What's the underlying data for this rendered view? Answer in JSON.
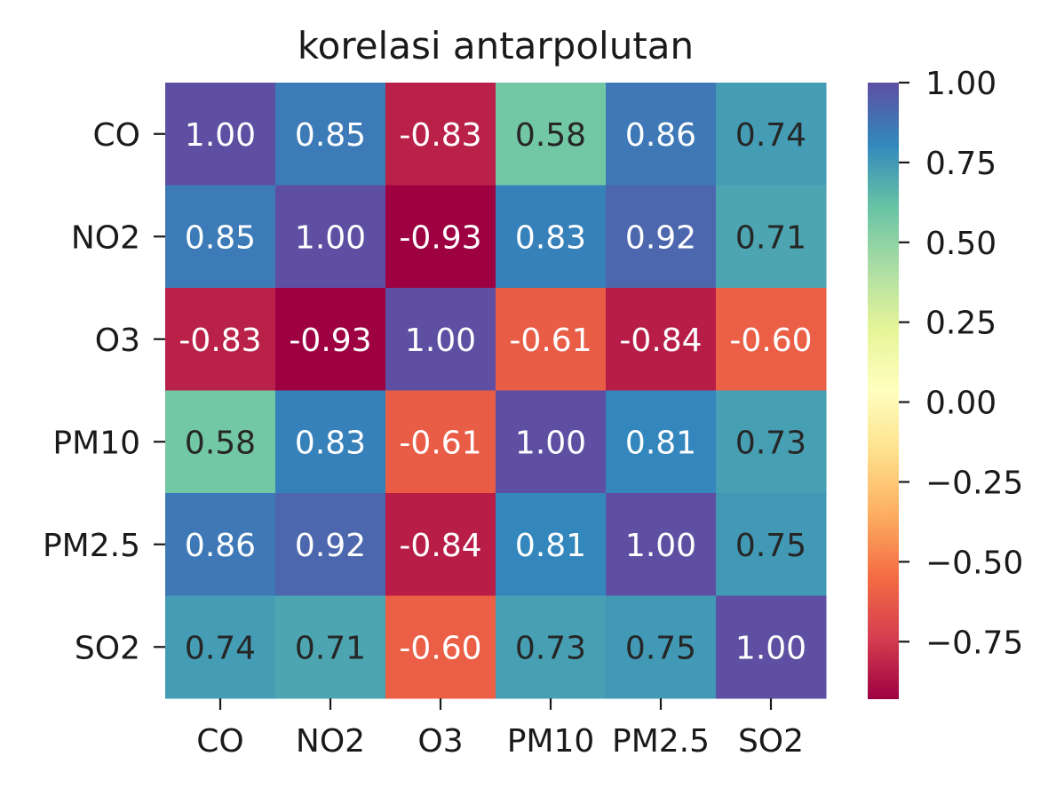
{
  "chart_data": {
    "type": "heatmap",
    "title": "korelasi antarpolutan",
    "xlabel": "",
    "ylabel": "",
    "x_categories": [
      "CO",
      "NO2",
      "O3",
      "PM10",
      "PM2.5",
      "SO2"
    ],
    "y_categories": [
      "CO",
      "NO2",
      "O3",
      "PM10",
      "PM2.5",
      "SO2"
    ],
    "values": [
      [
        1.0,
        0.85,
        -0.83,
        0.58,
        0.86,
        0.74
      ],
      [
        0.85,
        1.0,
        -0.93,
        0.83,
        0.92,
        0.71
      ],
      [
        -0.83,
        -0.93,
        1.0,
        -0.61,
        -0.84,
        -0.6
      ],
      [
        0.58,
        0.83,
        -0.61,
        1.0,
        0.81,
        0.73
      ],
      [
        0.86,
        0.92,
        -0.84,
        0.81,
        1.0,
        0.75
      ],
      [
        0.74,
        0.71,
        -0.6,
        0.73,
        0.75,
        1.0
      ]
    ],
    "value_format": "0.00",
    "colormap": "Spectral",
    "color_range": [
      -0.93,
      1.0
    ],
    "colorbar_ticks": [
      1.0,
      0.75,
      0.5,
      0.25,
      0.0,
      -0.25,
      -0.5,
      -0.75
    ],
    "colorbar_tick_labels": [
      "1.00",
      "0.75",
      "0.50",
      "0.25",
      "0.00",
      "−0.25",
      "−0.50",
      "−0.75"
    ],
    "grid": false
  }
}
